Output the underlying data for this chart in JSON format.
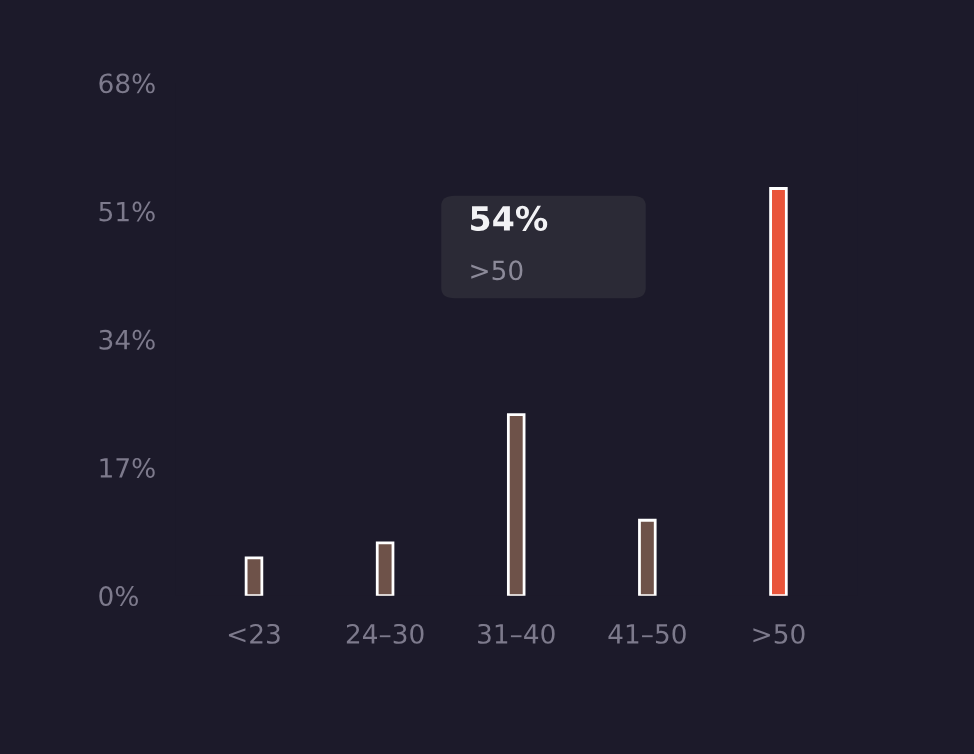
{
  "chart_data": {
    "type": "bar",
    "categories": [
      "<23",
      "24–30",
      "31–40",
      "41–50",
      ">50"
    ],
    "values": [
      5,
      7,
      24,
      10,
      54
    ],
    "colors": [
      "#6e5249",
      "#6e5249",
      "#6e5249",
      "#6e5249",
      "#e9553b"
    ],
    "ylim": [
      0,
      68
    ],
    "yticks": [
      {
        "value": 0,
        "label": "0%"
      },
      {
        "value": 17,
        "label": "17%"
      },
      {
        "value": 34,
        "label": "34%"
      },
      {
        "value": 51,
        "label": "51%"
      },
      {
        "value": 68,
        "label": "68%"
      }
    ],
    "annotations": [
      "54%",
      ">50"
    ],
    "grid": false
  }
}
